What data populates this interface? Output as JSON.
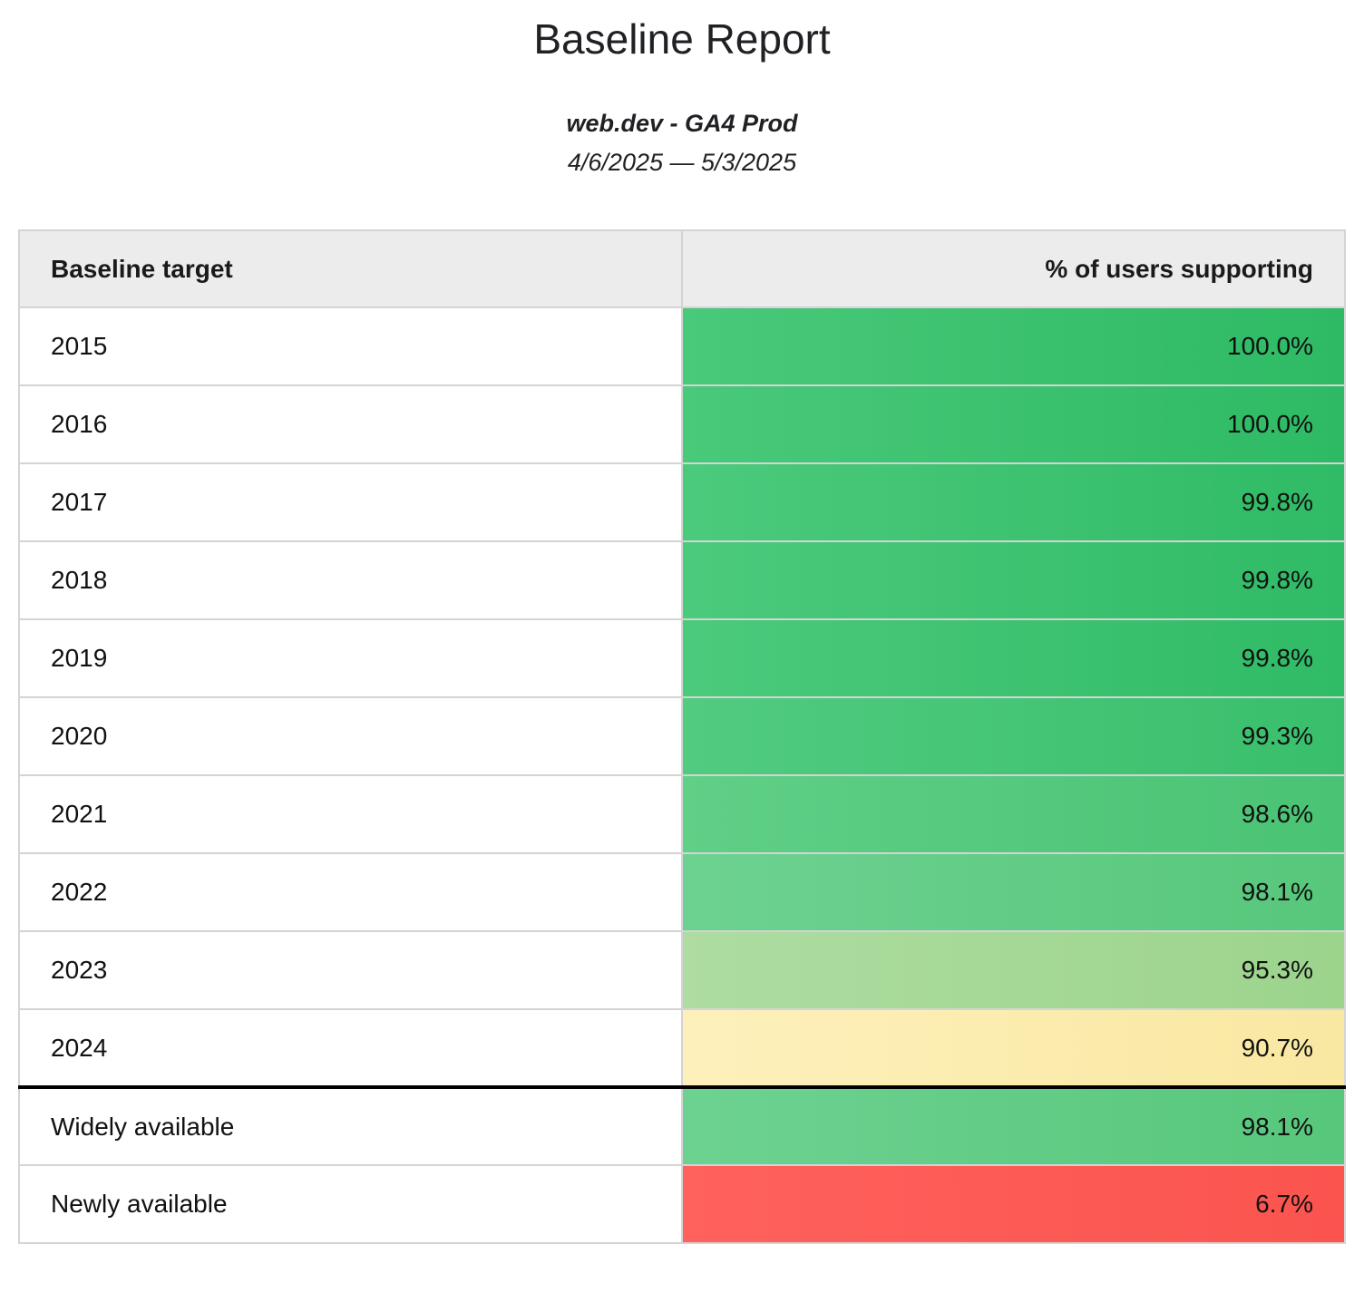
{
  "report": {
    "title": "Baseline Report",
    "subtitle": "web.dev - GA4 Prod",
    "date_range": "4/6/2025 — 5/3/2025"
  },
  "table": {
    "columns": [
      {
        "label": "Baseline target",
        "align": "left"
      },
      {
        "label": "% of users supporting",
        "align": "right"
      }
    ],
    "rows": [
      {
        "label": "2015",
        "value": "100.0%",
        "group": "year-target",
        "color": "#3cc470",
        "color_left": "#49c97a",
        "color_right": "#2eba64"
      },
      {
        "label": "2016",
        "value": "100.0%",
        "group": "year-target",
        "color": "#3cc470",
        "color_left": "#49c97a",
        "color_right": "#2eba64"
      },
      {
        "label": "2017",
        "value": "99.8%",
        "group": "year-target",
        "color": "#3ec472",
        "color_left": "#4bca7c",
        "color_right": "#30bb66"
      },
      {
        "label": "2018",
        "value": "99.8%",
        "group": "year-target",
        "color": "#3ec472",
        "color_left": "#4bca7c",
        "color_right": "#30bb66"
      },
      {
        "label": "2019",
        "value": "99.8%",
        "group": "year-target",
        "color": "#3ec472",
        "color_left": "#4bca7c",
        "color_right": "#30bb66"
      },
      {
        "label": "2020",
        "value": "99.3%",
        "group": "year-target",
        "color": "#45c676",
        "color_left": "#51cb80",
        "color_right": "#39bf6c"
      },
      {
        "label": "2021",
        "value": "98.6%",
        "group": "year-target",
        "color": "#55ca7e",
        "color_left": "#60cf87",
        "color_right": "#4ac374"
      },
      {
        "label": "2022",
        "value": "98.1%",
        "group": "year-target",
        "color": "#62cb84",
        "color_left": "#6dd291",
        "color_right": "#57c77b"
      },
      {
        "label": "2023",
        "value": "95.3%",
        "group": "year-target",
        "color": "#a5d896",
        "color_left": "#aedca1",
        "color_right": "#9cd48c"
      },
      {
        "label": "2024",
        "value": "90.7%",
        "group": "year-target",
        "color": "#fbecae",
        "color_left": "#fdf0bb",
        "color_right": "#f9e8a2"
      },
      {
        "label": "Widely available",
        "value": "98.1%",
        "group": "availability",
        "color": "#62cb84",
        "color_left": "#6dd291",
        "color_right": "#57c77b"
      },
      {
        "label": "Newly available",
        "value": "6.7%",
        "group": "availability",
        "color": "#fe5a55",
        "color_left": "#ff615c",
        "color_right": "#fb544f"
      }
    ],
    "style": {
      "header_bg": "#ececec",
      "row_border": "#d4d4d4",
      "section_divider": "#000000"
    }
  },
  "chart_data": {
    "type": "table",
    "title": "Baseline Report",
    "subtitle": "web.dev - GA4 Prod",
    "date_range": "4/6/2025 — 5/3/2025",
    "columns": [
      "Baseline target",
      "% of users supporting"
    ],
    "categories": [
      "2015",
      "2016",
      "2017",
      "2018",
      "2019",
      "2020",
      "2021",
      "2022",
      "2023",
      "2024",
      "Widely available",
      "Newly available"
    ],
    "values": [
      100.0,
      100.0,
      99.8,
      99.8,
      99.8,
      99.3,
      98.6,
      98.1,
      95.3,
      90.7,
      98.1,
      6.7
    ],
    "value_format": "percent",
    "color_scale": {
      "high": "#3cc470",
      "mid": "#fbecae",
      "low": "#fe5a55"
    }
  }
}
